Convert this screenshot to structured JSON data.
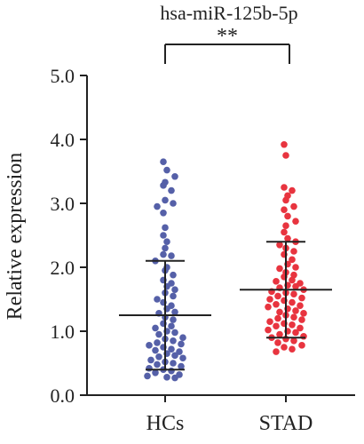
{
  "chart_data": {
    "type": "scatter",
    "title": "hsa-miR-125b-5p",
    "xlabel": "",
    "ylabel": "Relative expression",
    "ylim": [
      0,
      5
    ],
    "yticks": [
      "0.0",
      "1.0",
      "2.0",
      "3.0",
      "4.0",
      "5.0"
    ],
    "grid": false,
    "significance": "**",
    "categories": [
      "HCs",
      "STAD"
    ],
    "series": [
      {
        "name": "HCs",
        "color": "#5560a8",
        "mean": 1.25,
        "sd_upper": 2.1,
        "sd_lower": 0.4,
        "values": [
          3.65,
          3.52,
          3.42,
          3.33,
          3.28,
          3.2,
          3.05,
          3.0,
          2.95,
          2.85,
          2.62,
          2.5,
          2.4,
          2.3,
          2.2,
          2.18,
          2.1,
          2.0,
          1.95,
          1.88,
          1.8,
          1.75,
          1.7,
          1.65,
          1.6,
          1.55,
          1.5,
          1.45,
          1.4,
          1.35,
          1.3,
          1.28,
          1.22,
          1.18,
          1.12,
          1.08,
          1.05,
          1.0,
          0.98,
          0.95,
          0.9,
          0.88,
          0.85,
          0.82,
          0.8,
          0.78,
          0.75,
          0.72,
          0.7,
          0.68,
          0.65,
          0.62,
          0.6,
          0.58,
          0.55,
          0.52,
          0.5,
          0.48,
          0.45,
          0.42,
          0.4,
          0.38,
          0.35,
          0.32,
          0.3,
          0.28,
          0.27
        ]
      },
      {
        "name": "STAD",
        "color": "#e8343f",
        "mean": 1.65,
        "sd_upper": 2.4,
        "sd_lower": 0.9,
        "values": [
          3.92,
          3.75,
          3.25,
          3.2,
          3.12,
          3.05,
          2.95,
          2.9,
          2.8,
          2.72,
          2.65,
          2.55,
          2.45,
          2.4,
          2.35,
          2.3,
          2.25,
          2.2,
          2.12,
          2.05,
          2.0,
          1.98,
          1.92,
          1.88,
          1.85,
          1.8,
          1.78,
          1.75,
          1.72,
          1.7,
          1.68,
          1.65,
          1.62,
          1.6,
          1.58,
          1.55,
          1.52,
          1.5,
          1.48,
          1.45,
          1.42,
          1.4,
          1.38,
          1.35,
          1.32,
          1.3,
          1.28,
          1.25,
          1.22,
          1.2,
          1.18,
          1.15,
          1.12,
          1.1,
          1.08,
          1.05,
          1.02,
          1.0,
          0.98,
          0.95,
          0.92,
          0.9,
          0.88,
          0.85,
          0.82,
          0.78,
          0.75,
          0.72,
          0.68
        ]
      }
    ]
  }
}
